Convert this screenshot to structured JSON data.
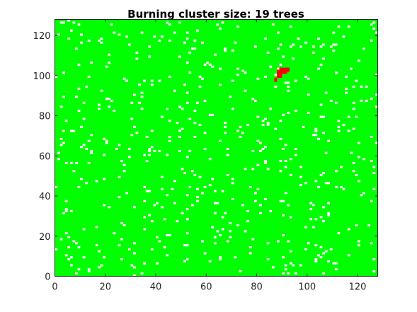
{
  "chart_data": {
    "type": "heatmap",
    "title": "Burning cluster size: 19 trees",
    "xlabel": "",
    "ylabel": "",
    "grid_size": 128,
    "xlim": [
      0,
      128
    ],
    "ylim": [
      0,
      128
    ],
    "x_ticks": [
      0,
      20,
      40,
      60,
      80,
      100,
      120
    ],
    "y_ticks": [
      0,
      20,
      40,
      60,
      80,
      100,
      120
    ],
    "x_tick_labels": [
      "0",
      "20",
      "40",
      "60",
      "80",
      "100",
      "120"
    ],
    "y_tick_labels": [
      "0",
      "20",
      "40",
      "60",
      "80",
      "100",
      "120"
    ],
    "legend": "none",
    "grid": false,
    "colors": {
      "tree": "#00ff00",
      "burning": "#ff0000",
      "empty": "#ffffff"
    },
    "cell_states": [
      "empty",
      "tree",
      "burning"
    ],
    "background_state": "tree",
    "empty_fraction_approx": 0.035,
    "burning_cells": [
      [
        89,
        103
      ],
      [
        90,
        103
      ],
      [
        91,
        103
      ],
      [
        92,
        103
      ],
      [
        88,
        102
      ],
      [
        89,
        102
      ],
      [
        90,
        102
      ],
      [
        91,
        102
      ],
      [
        92,
        102
      ],
      [
        88,
        101
      ],
      [
        89,
        101
      ],
      [
        90,
        101
      ],
      [
        91,
        101
      ],
      [
        88,
        100
      ],
      [
        89,
        100
      ],
      [
        88,
        99
      ],
      [
        89,
        99
      ],
      [
        87,
        98
      ],
      [
        87,
        97
      ]
    ]
  }
}
